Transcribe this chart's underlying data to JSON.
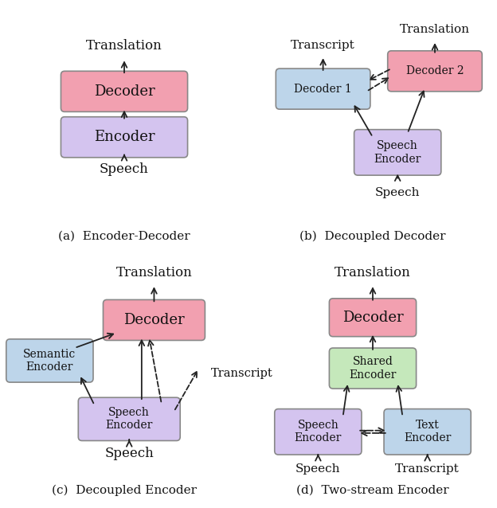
{
  "fig_width": 6.24,
  "fig_height": 6.38,
  "bg_color": "#ffffff",
  "pink_fill": "#f2a0b0",
  "lavender_fill": "#d4c4ef",
  "blue_fill": "#bdd5ea",
  "green_fill": "#c5e8bb",
  "box_edge": "#888888",
  "text_color": "#111111",
  "arrow_color": "#222222",
  "captions": [
    "(a)  Encoder-Decoder",
    "(b)  Decoupled Decoder",
    "(c)  Decoupled Encoder",
    "(d)  Two-stream Encoder"
  ]
}
